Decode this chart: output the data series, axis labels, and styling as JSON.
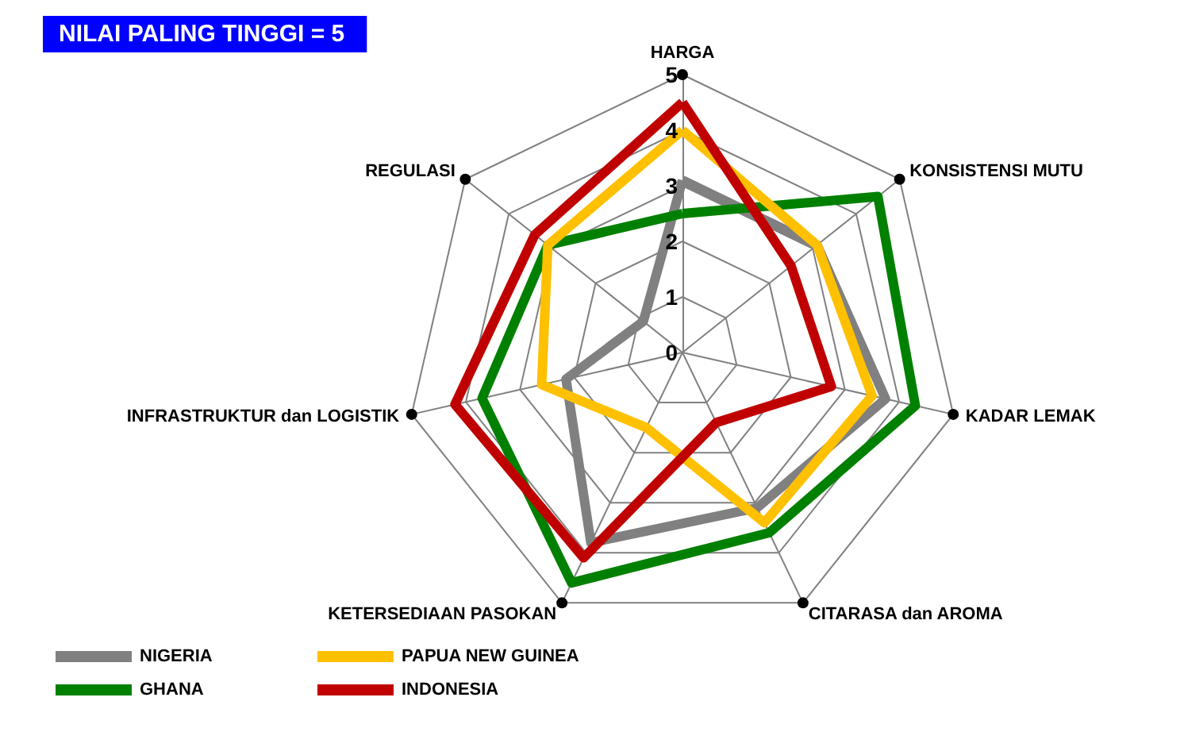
{
  "chart_data": {
    "type": "radar",
    "title": "NILAI PALING TINGGI = 5",
    "categories": [
      "HARGA",
      "KONSISTENSI MUTU",
      "KADAR LEMAK",
      "CITARASA dan AROMA",
      "KETERSEDIAAN PASOKAN",
      "INFRASTRUKTUR dan LOGISTIK",
      "REGULASI"
    ],
    "series": [
      {
        "name": "NIGERIA",
        "color": "#808080",
        "values": [
          3.1,
          3.1,
          3.75,
          3.1,
          3.8,
          2.15,
          0.9
        ]
      },
      {
        "name": "GHANA",
        "color": "#008000",
        "values": [
          2.5,
          4.5,
          4.3,
          3.6,
          4.6,
          3.7,
          3.1
        ]
      },
      {
        "name": "PAPUA NEW GUINEA",
        "color": "#ffc000",
        "values": [
          4,
          3.1,
          3.5,
          3.4,
          1.5,
          2.6,
          3.1
        ]
      },
      {
        "name": "INDONESIA",
        "color": "#c00000",
        "values": [
          4.5,
          2.5,
          2.75,
          1.4,
          4.1,
          4.2,
          3.4
        ]
      }
    ],
    "ylim": [
      0,
      5
    ],
    "yticks": [
      0,
      1,
      2,
      3,
      4,
      5
    ],
    "grid": true,
    "legend": "bottom left",
    "marker": "none",
    "line_style": "solid"
  }
}
